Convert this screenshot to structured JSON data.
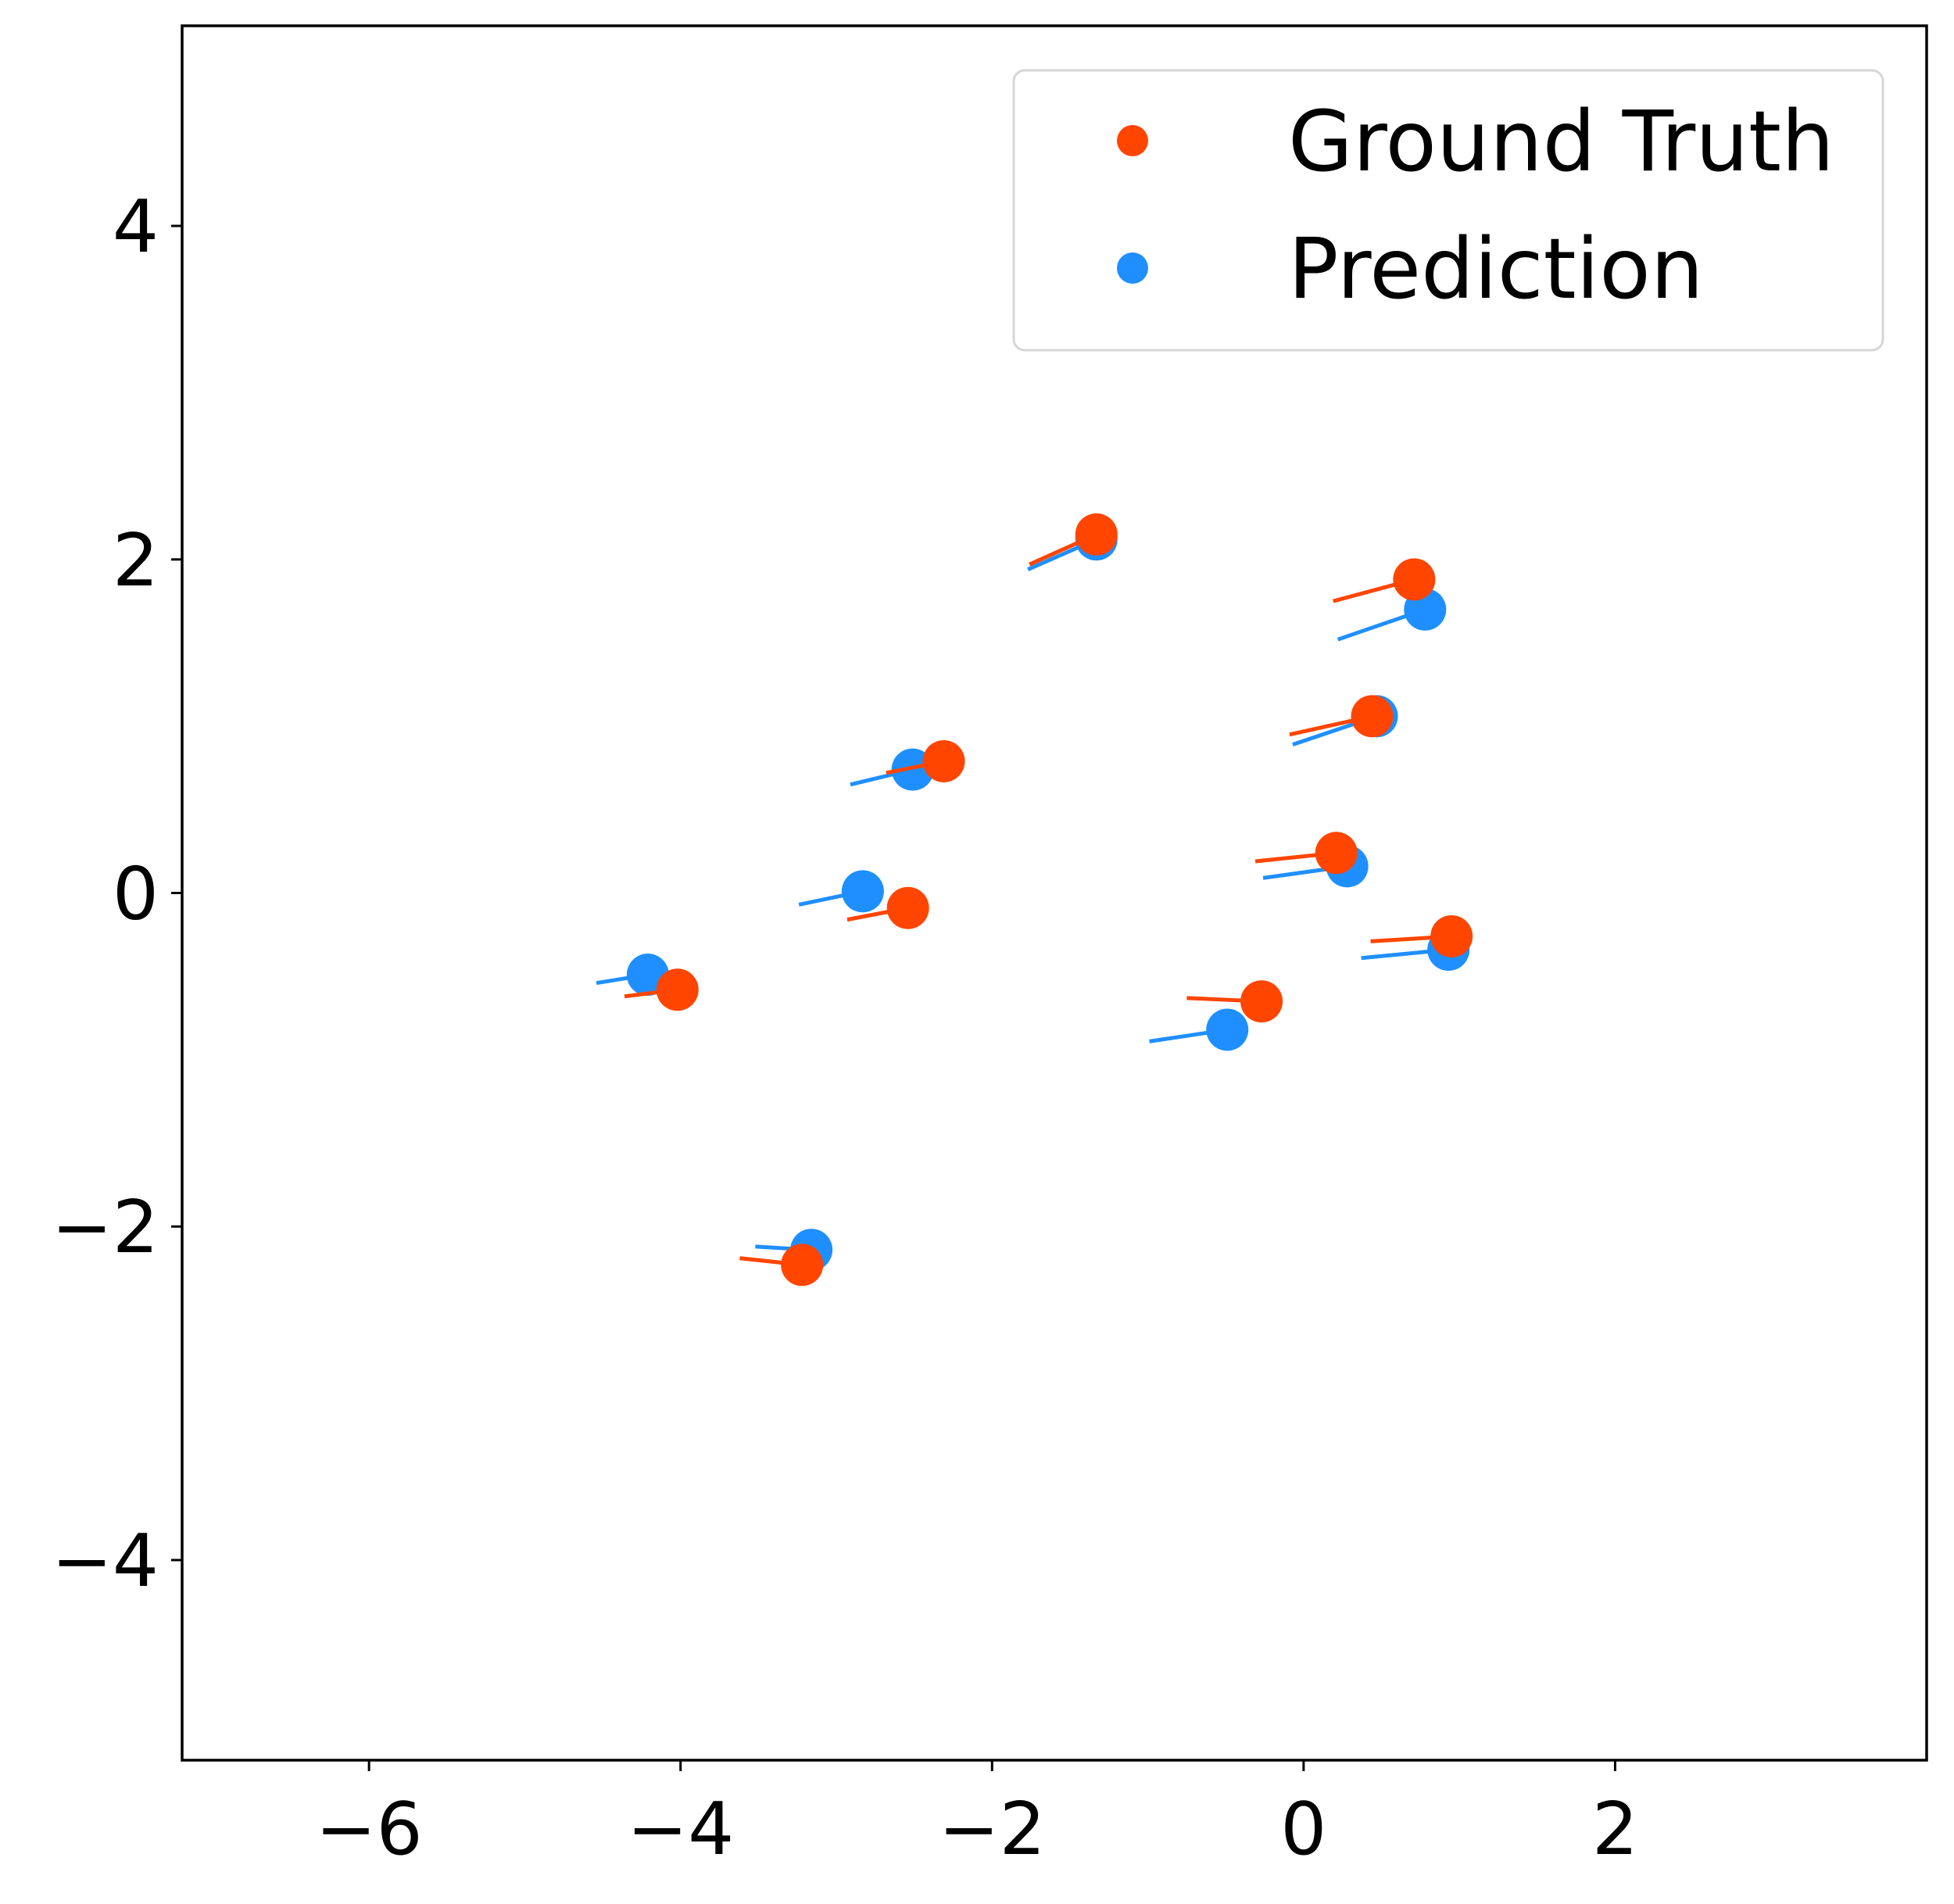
{
  "chart_data": {
    "type": "scatter",
    "xlim": [
      -7.2,
      4.0
    ],
    "ylim": [
      -5.2,
      5.2
    ],
    "x_ticks": [
      -6,
      -4,
      -2,
      0,
      2
    ],
    "y_ticks": [
      -4,
      -2,
      0,
      2,
      4
    ],
    "x_tick_labels": [
      "−6",
      "−4",
      "−2",
      "0",
      "2"
    ],
    "y_tick_labels": [
      "−4",
      "−2",
      "0",
      "2",
      "4"
    ],
    "grid": false,
    "legend_position": "top-right",
    "series": [
      {
        "name": "Ground Truth",
        "color": "#ff4500",
        "points": [
          {
            "x": -1.33,
            "y": 2.15,
            "tail": [
              -1.76,
              1.97
            ]
          },
          {
            "x": 0.71,
            "y": 1.88,
            "tail": [
              0.19,
              1.75
            ]
          },
          {
            "x": 0.44,
            "y": 1.06,
            "tail": [
              -0.09,
              0.95
            ]
          },
          {
            "x": -2.31,
            "y": 0.79,
            "tail": [
              -2.68,
              0.72
            ]
          },
          {
            "x": 0.21,
            "y": 0.24,
            "tail": [
              -0.31,
              0.19
            ]
          },
          {
            "x": -2.54,
            "y": -0.09,
            "tail": [
              -2.93,
              -0.16
            ]
          },
          {
            "x": 0.95,
            "y": -0.26,
            "tail": [
              0.43,
              -0.29
            ]
          },
          {
            "x": -0.27,
            "y": -0.65,
            "tail": [
              -0.75,
              -0.63
            ]
          },
          {
            "x": -4.02,
            "y": -0.58,
            "tail": [
              -4.36,
              -0.62
            ]
          },
          {
            "x": -3.22,
            "y": -2.23,
            "tail": [
              -3.62,
              -2.19
            ]
          }
        ]
      },
      {
        "name": "Prediction",
        "color": "#1f8fff",
        "points": [
          {
            "x": -1.33,
            "y": 2.12,
            "tail": [
              -1.77,
              1.94
            ]
          },
          {
            "x": 0.78,
            "y": 1.7,
            "tail": [
              0.22,
              1.52
            ]
          },
          {
            "x": 0.47,
            "y": 1.06,
            "tail": [
              -0.07,
              0.89
            ]
          },
          {
            "x": -2.51,
            "y": 0.74,
            "tail": [
              -2.91,
              0.65
            ]
          },
          {
            "x": 0.28,
            "y": 0.16,
            "tail": [
              -0.26,
              0.09
            ]
          },
          {
            "x": -2.83,
            "y": 0.01,
            "tail": [
              -3.24,
              -0.07
            ]
          },
          {
            "x": 0.93,
            "y": -0.34,
            "tail": [
              0.37,
              -0.39
            ]
          },
          {
            "x": -0.49,
            "y": -0.82,
            "tail": [
              -0.99,
              -0.89
            ]
          },
          {
            "x": -4.21,
            "y": -0.49,
            "tail": [
              -4.54,
              -0.54
            ]
          },
          {
            "x": -3.16,
            "y": -2.14,
            "tail": [
              -3.52,
              -2.12
            ]
          }
        ]
      }
    ]
  }
}
